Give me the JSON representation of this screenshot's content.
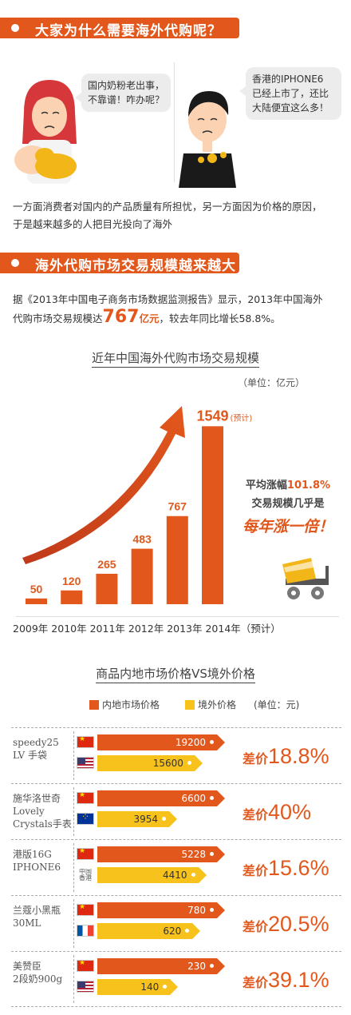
{
  "section1": {
    "title": "大家为什么需要海外代购呢？"
  },
  "scene": {
    "left_bubble": [
      "国内奶粉老出事，",
      "不靠谱！咋办呢？"
    ],
    "right_bubble": [
      "香港的IPHONE6",
      "已经上市了，还比",
      "大陆便宜这么多！"
    ]
  },
  "intro_text": [
    "一方面消费者对国内的产品质量有所担忧，另一方面因为价格的原因，",
    "于是越来越多的人把目光投向了海外"
  ],
  "section2": {
    "title": "海外代购市场交易规模越来越大"
  },
  "report_text": {
    "line1": "据《2013年中国电子商务市场数据监测报告》显示，2013年中国海外",
    "line2_prefix": "代购市场交易规模达",
    "highlight_value": "767",
    "highlight_unit": "亿元",
    "line2_suffix": "，较去年同比增长58.8%。"
  },
  "growth_note": {
    "line1_prefix": "平均涨幅",
    "line1_value": "101.8%",
    "line2": "交易规模几乎是",
    "line3": "每年涨一倍！"
  },
  "compare_legend": {
    "domestic": "内地市场价格",
    "overseas": "境外价格",
    "unit": "(单位：元)"
  },
  "colors": {
    "accent": "#e2581c",
    "overseas": "#f7c21b"
  },
  "chart_data": [
    {
      "type": "bar",
      "title": "近年中国海外代购市场交易规模",
      "unit_label": "（单位：亿元）",
      "categories": [
        "2009年",
        "2010年",
        "2011年",
        "2012年",
        "2013年",
        "2014年（预计）"
      ],
      "values": [
        50,
        120,
        265,
        483,
        767,
        1549
      ],
      "value_labels": [
        "50",
        "120",
        "265",
        "483",
        "767",
        "1549"
      ],
      "forecast_tag": "(预计)",
      "ylim": [
        0,
        1600
      ],
      "color": "#e2581c"
    },
    {
      "type": "bar",
      "title": "商品内地市场价格VS境外价格",
      "series": [
        {
          "name": "内地市场价格",
          "color": "#e2581c"
        },
        {
          "name": "境外价格",
          "color": "#f7c21b"
        }
      ],
      "rows": [
        {
          "product": [
            "speedy25",
            "LV 手袋"
          ],
          "domestic": 19200,
          "overseas": 15600,
          "overseas_flag": "us-flag",
          "diff_label": "差价",
          "diff_value": "18.8%"
        },
        {
          "product": [
            "施华洛世奇",
            "Lovely",
            "Crystals手表"
          ],
          "domestic": 6600,
          "overseas": 3954,
          "overseas_flag": "eu-flag",
          "diff_label": "差价",
          "diff_value": "40%"
        },
        {
          "product": [
            "港版16G",
            "IPHONE6"
          ],
          "domestic": 5228,
          "overseas": 4410,
          "overseas_flag": "hk-flag",
          "overseas_flag_text": [
            "中国",
            "香港"
          ],
          "diff_label": "差价",
          "diff_value": "15.6%"
        },
        {
          "product": [
            "兰蔻小黑瓶",
            "30ML"
          ],
          "domestic": 780,
          "overseas": 620,
          "overseas_flag": "fr-flag",
          "diff_label": "差价",
          "diff_value": "20.5%"
        },
        {
          "product": [
            "美赞臣",
            "2段奶900g"
          ],
          "domestic": 230,
          "overseas": 140,
          "overseas_flag": "us-flag",
          "diff_label": "差价",
          "diff_value": "39.1%"
        }
      ]
    }
  ]
}
